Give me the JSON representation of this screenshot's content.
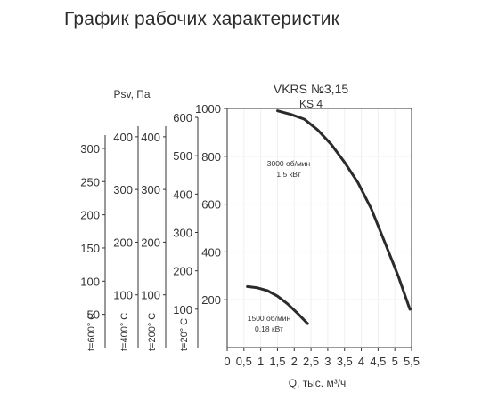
{
  "page_title": "График рабочих характеристик",
  "chart_data": {
    "type": "line",
    "title": "VKRS №3,15",
    "subtitle": "KS 4",
    "xlabel": "Q, тыс. м³/ч",
    "ylabel": "Psv, Па",
    "xlim": [
      0,
      5.5
    ],
    "ylim": [
      0,
      1000
    ],
    "x_ticks": [
      "0",
      "0,5",
      "1",
      "1,5",
      "2",
      "2,5",
      "3",
      "3,5",
      "4",
      "4,5",
      "5",
      "5,5"
    ],
    "y_ticks": [
      "200",
      "400",
      "600",
      "800",
      "1000"
    ],
    "grid": true,
    "secondary_axes": [
      {
        "label": "t=20° C",
        "max": 600,
        "ticks": [
          "100",
          "200",
          "300",
          "400",
          "500",
          "600"
        ]
      },
      {
        "label": "t=200° C",
        "max": 420,
        "ticks": [
          "100",
          "200",
          "300",
          "400"
        ]
      },
      {
        "label": "t=400° C",
        "max": 420,
        "ticks": [
          "100",
          "200",
          "300",
          "400"
        ]
      },
      {
        "label": "t=600° C",
        "max": 320,
        "ticks": [
          "50",
          "100",
          "150",
          "200",
          "250",
          "300"
        ]
      }
    ],
    "series": [
      {
        "name": "3000 об/мин",
        "power": "1,5 кВт",
        "x": [
          1.5,
          1.9,
          2.3,
          2.7,
          3.1,
          3.5,
          3.9,
          4.3,
          4.7,
          5.1,
          5.45
        ],
        "y": [
          990,
          975,
          955,
          910,
          850,
          775,
          690,
          580,
          440,
          300,
          160
        ]
      },
      {
        "name": "1500 об/мин",
        "power": "0,18 кВт",
        "x": [
          0.6,
          0.9,
          1.2,
          1.5,
          1.8,
          2.1,
          2.4
        ],
        "y": [
          255,
          250,
          238,
          215,
          183,
          143,
          100
        ]
      }
    ]
  }
}
